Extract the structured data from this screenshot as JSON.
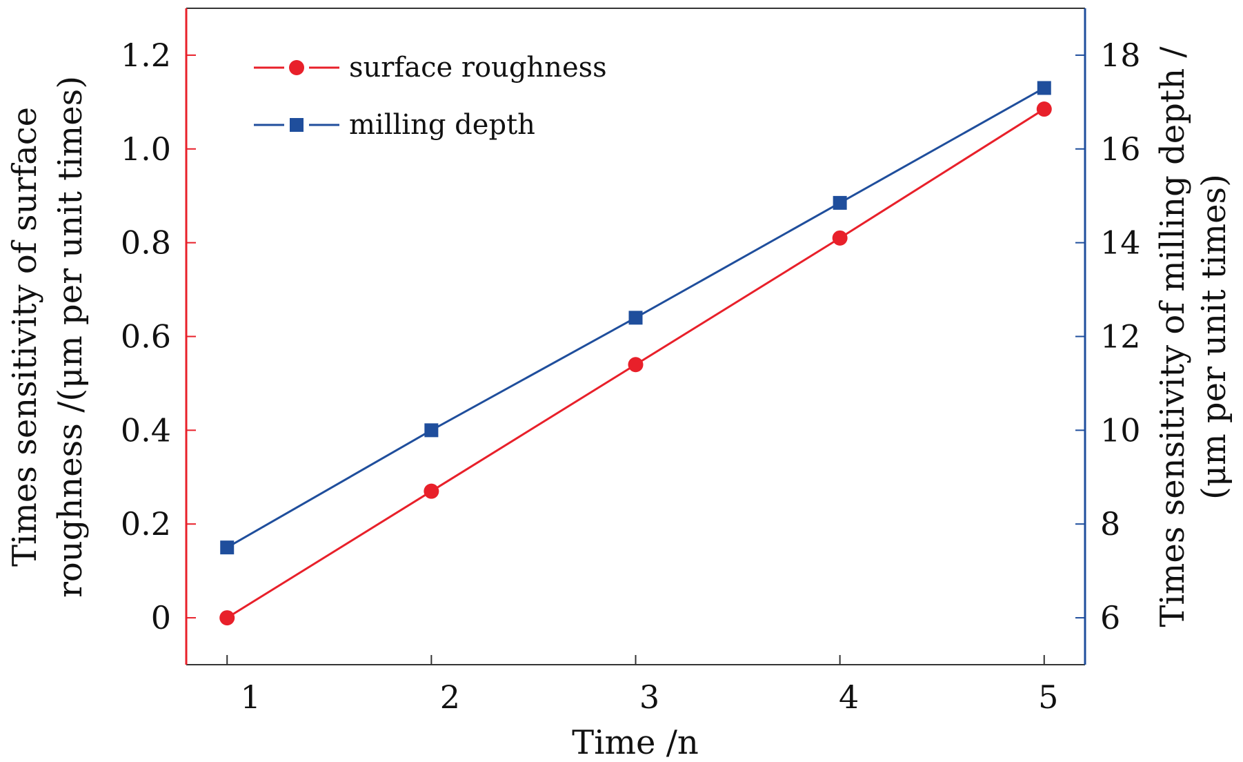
{
  "colors": {
    "left_axis": "#e8202a",
    "right_axis": "#1f4e9c",
    "surface_roughness": "#e8202a",
    "milling_depth": "#1f4e9c"
  },
  "chart_data": {
    "type": "line",
    "x": [
      1,
      2,
      3,
      4,
      5
    ],
    "x_tick_labels": [
      "1",
      "2",
      "3",
      "4",
      "5"
    ],
    "xlabel": "Time /n",
    "xlim": [
      0.8,
      5.2
    ],
    "series": [
      {
        "name": "surface roughness",
        "axis": "left",
        "marker": "circle",
        "values": [
          0.0,
          0.27,
          0.54,
          0.81,
          1.085
        ]
      },
      {
        "name": "milling depth",
        "axis": "right",
        "marker": "square",
        "values": [
          7.5,
          10.0,
          12.4,
          14.85,
          17.3
        ]
      }
    ],
    "y_left": {
      "label_line1": "Times sensitivity of surface",
      "label_line2": "roughness /(μm per unit times)",
      "ylim": [
        -0.1,
        1.3
      ],
      "ticks": [
        0,
        0.2,
        0.4,
        0.6,
        0.8,
        1.0,
        1.2
      ],
      "tick_labels": [
        "0",
        "0.2",
        "0.4",
        "0.6",
        "0.8",
        "1.0",
        "1.2"
      ]
    },
    "y_right": {
      "label_line1": "Times sensitivity of milling depth /",
      "label_line2": "(μm per unit times)",
      "ylim": [
        5,
        19
      ],
      "ticks": [
        6,
        8,
        10,
        12,
        14,
        16,
        18
      ],
      "tick_labels": [
        "6",
        "8",
        "10",
        "12",
        "14",
        "16",
        "18"
      ]
    },
    "legend_position": "top-left",
    "grid": false
  }
}
